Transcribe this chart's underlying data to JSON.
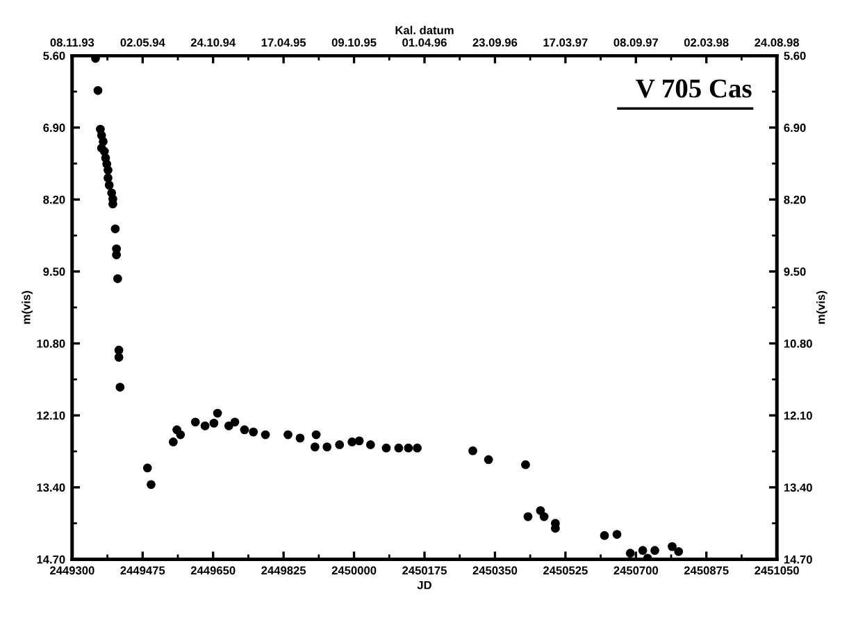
{
  "chart_data": {
    "type": "scatter",
    "title": "V 705 Cas",
    "xlabel": "JD",
    "ylabel": "m(vis)",
    "y2label": "m(vis)",
    "x2label": "Kal. datum",
    "marker": "circle",
    "grid": false,
    "legend": false,
    "xlim": [
      2449300,
      2451050
    ],
    "xticks": [
      2449300,
      2449475,
      2449650,
      2449825,
      2450000,
      2450175,
      2450350,
      2450525,
      2450700,
      2450875,
      2451050
    ],
    "x2lim": [
      "1993-11-08",
      "1998-08-24"
    ],
    "x2ticks": [
      {
        "value": "1993-11-08",
        "label": "08.11.93"
      },
      {
        "value": "1994-05-02",
        "label": "02.05.94"
      },
      {
        "value": "1994-10-24",
        "label": "24.10.94"
      },
      {
        "value": "1995-04-17",
        "label": "17.04.95"
      },
      {
        "value": "1995-10-09",
        "label": "09.10.95"
      },
      {
        "value": "1996-04-01",
        "label": "01.04.96"
      },
      {
        "value": "1996-09-23",
        "label": "23.09.96"
      },
      {
        "value": "1997-03-17",
        "label": "17.03.97"
      },
      {
        "value": "1997-09-08",
        "label": "08.09.97"
      },
      {
        "value": "1998-03-02",
        "label": "02.03.98"
      },
      {
        "value": "1998-08-24",
        "label": "24.08.98"
      }
    ],
    "ylim": [
      14.7,
      5.6
    ],
    "yticks": [
      {
        "value": 5.6,
        "label": "5.60"
      },
      {
        "value": 6.9,
        "label": "6.90"
      },
      {
        "value": 8.2,
        "label": "8.20"
      },
      {
        "value": 9.5,
        "label": "9.50"
      },
      {
        "value": 10.8,
        "label": "10.80"
      },
      {
        "value": 12.1,
        "label": "12.10"
      },
      {
        "value": 13.4,
        "label": "13.40"
      },
      {
        "value": 14.7,
        "label": "14.70"
      }
    ],
    "y2lim": [
      14.7,
      5.6
    ],
    "y2ticks": [
      {
        "value": 5.6,
        "label": "5.60"
      },
      {
        "value": 6.9,
        "label": "6.90"
      },
      {
        "value": 8.2,
        "label": "8.20"
      },
      {
        "value": 9.5,
        "label": "9.50"
      },
      {
        "value": 10.8,
        "label": "10.80"
      },
      {
        "value": 12.1,
        "label": "12.10"
      },
      {
        "value": 13.4,
        "label": "13.40"
      },
      {
        "value": 14.7,
        "label": "14.70"
      }
    ],
    "series": [
      {
        "color": "#000000",
        "x": [
          2449358,
          2449364,
          2449370,
          2449373,
          2449377,
          2449373,
          2449380,
          2449383,
          2449386,
          2449389,
          2449389,
          2449392,
          2449398,
          2449401,
          2449401,
          2449407,
          2449410,
          2449410,
          2449413,
          2449416,
          2449416,
          2449419,
          2449487,
          2449496,
          2449551,
          2449560,
          2449569,
          2449606,
          2449630,
          2449652,
          2449661,
          2449689,
          2449704,
          2449728,
          2449750,
          2449780,
          2449836,
          2449866,
          2449906,
          2449903,
          2449933,
          2449964,
          2449995,
          2450013,
          2450041,
          2450080,
          2450111,
          2450135,
          2450157,
          2450295,
          2450334,
          2450426,
          2450432,
          2450463,
          2450472,
          2450500,
          2450500,
          2450622,
          2450653,
          2450686,
          2450717,
          2450729,
          2450747,
          2450790,
          2450806
        ],
        "values": [
          5.65,
          6.23,
          6.93,
          7.04,
          7.15,
          7.27,
          7.33,
          7.45,
          7.56,
          7.67,
          7.81,
          7.94,
          8.08,
          8.19,
          8.28,
          8.73,
          9.09,
          9.2,
          9.63,
          10.92,
          11.05,
          11.59,
          13.05,
          13.35,
          12.58,
          12.36,
          12.45,
          12.22,
          12.29,
          12.24,
          12.06,
          12.29,
          12.22,
          12.36,
          12.4,
          12.45,
          12.45,
          12.51,
          12.45,
          12.67,
          12.67,
          12.63,
          12.58,
          12.56,
          12.63,
          12.69,
          12.69,
          12.69,
          12.69,
          12.74,
          12.9,
          12.99,
          13.93,
          13.82,
          13.93,
          14.05,
          14.14,
          14.27,
          14.25,
          14.59,
          14.54,
          14.68,
          14.54,
          14.47,
          14.56
        ]
      }
    ]
  }
}
